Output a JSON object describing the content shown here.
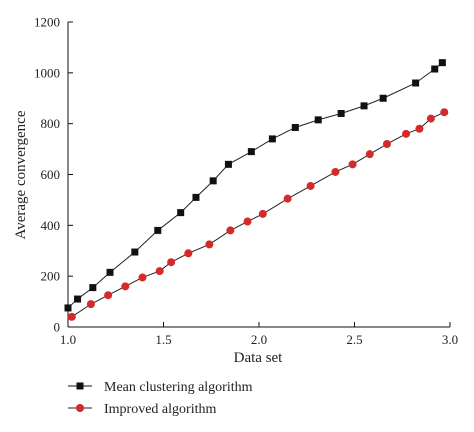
{
  "chart_data": {
    "type": "line",
    "xlabel": "Data set",
    "ylabel": "Average convergence",
    "xlim": [
      1.0,
      3.0
    ],
    "ylim": [
      0,
      1200
    ],
    "xticks": [
      "1.0",
      "1.5",
      "2.0",
      "2.5",
      "3.0"
    ],
    "yticks": [
      "0",
      "200",
      "400",
      "600",
      "800",
      "1000",
      "1200"
    ],
    "grid": false,
    "legend_position": "bottom-left",
    "series": [
      {
        "name": "Mean clustering algorithm",
        "color": "#111111",
        "marker": "square",
        "x": [
          1.0,
          1.05,
          1.13,
          1.22,
          1.35,
          1.47,
          1.59,
          1.67,
          1.76,
          1.84,
          1.96,
          2.07,
          2.19,
          2.31,
          2.43,
          2.55,
          2.65,
          2.82,
          2.92,
          2.96
        ],
        "y": [
          75,
          110,
          155,
          215,
          295,
          380,
          450,
          510,
          575,
          640,
          690,
          740,
          785,
          815,
          840,
          870,
          900,
          960,
          1015,
          1040
        ]
      },
      {
        "name": "Improved algorithm",
        "color": "#d42a2a",
        "marker": "circle",
        "x": [
          1.02,
          1.12,
          1.21,
          1.3,
          1.39,
          1.48,
          1.54,
          1.63,
          1.74,
          1.85,
          1.94,
          2.02,
          2.15,
          2.27,
          2.4,
          2.49,
          2.58,
          2.67,
          2.77,
          2.84,
          2.9,
          2.97
        ],
        "y": [
          40,
          90,
          125,
          160,
          195,
          220,
          255,
          290,
          325,
          380,
          415,
          445,
          505,
          555,
          610,
          640,
          680,
          720,
          760,
          780,
          820,
          845
        ]
      }
    ]
  }
}
